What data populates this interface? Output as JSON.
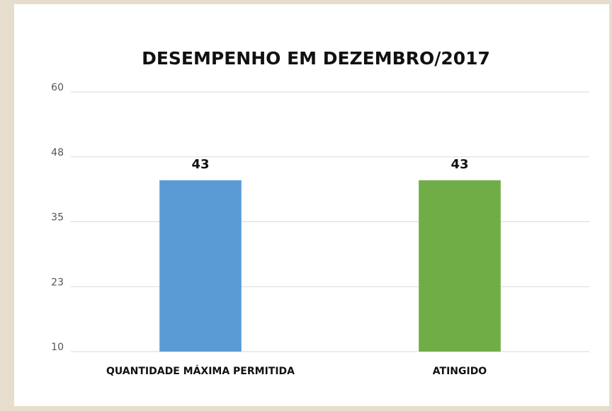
{
  "chart_data": {
    "type": "bar",
    "title": "DESEMPENHO EM DEZEMBRO/2017",
    "categories": [
      "QUANTIDADE MÁXIMA PERMITIDA",
      "ATINGIDO"
    ],
    "values": [
      43,
      43
    ],
    "colors": [
      "#5b9bd5",
      "#70ad47"
    ],
    "ylim": [
      10,
      60
    ],
    "yticks": [
      10,
      {
        "value": 22.5,
        "label": "23"
      },
      35,
      {
        "value": 47.5,
        "label": "48"
      },
      60
    ],
    "grid": true
  }
}
